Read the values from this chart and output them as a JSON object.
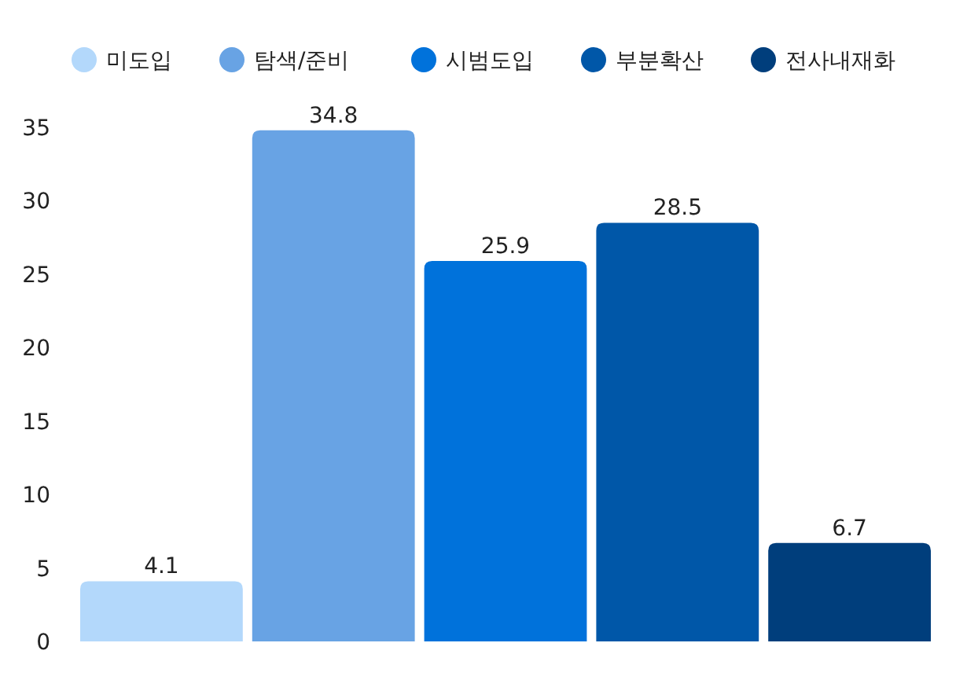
{
  "chart_data": {
    "type": "bar",
    "categories": [
      null
    ],
    "series": [
      {
        "name": "미도입",
        "color": "#b3d8fb",
        "values": [
          4.1
        ]
      },
      {
        "name": "탐색/준비",
        "color": "#68a3e4",
        "values": [
          34.8
        ]
      },
      {
        "name": "시범도입",
        "color": "#0072db",
        "values": [
          25.9
        ]
      },
      {
        "name": "부분확산",
        "color": "#0057a8",
        "values": [
          28.5
        ]
      },
      {
        "name": "전사내재화",
        "color": "#003e7c",
        "values": [
          6.7
        ]
      }
    ],
    "ylim": [
      0,
      35
    ],
    "yticks": [
      0,
      5,
      10,
      15,
      20,
      25,
      30,
      35
    ],
    "data_labels": true,
    "legend": "top",
    "grid": false
  }
}
